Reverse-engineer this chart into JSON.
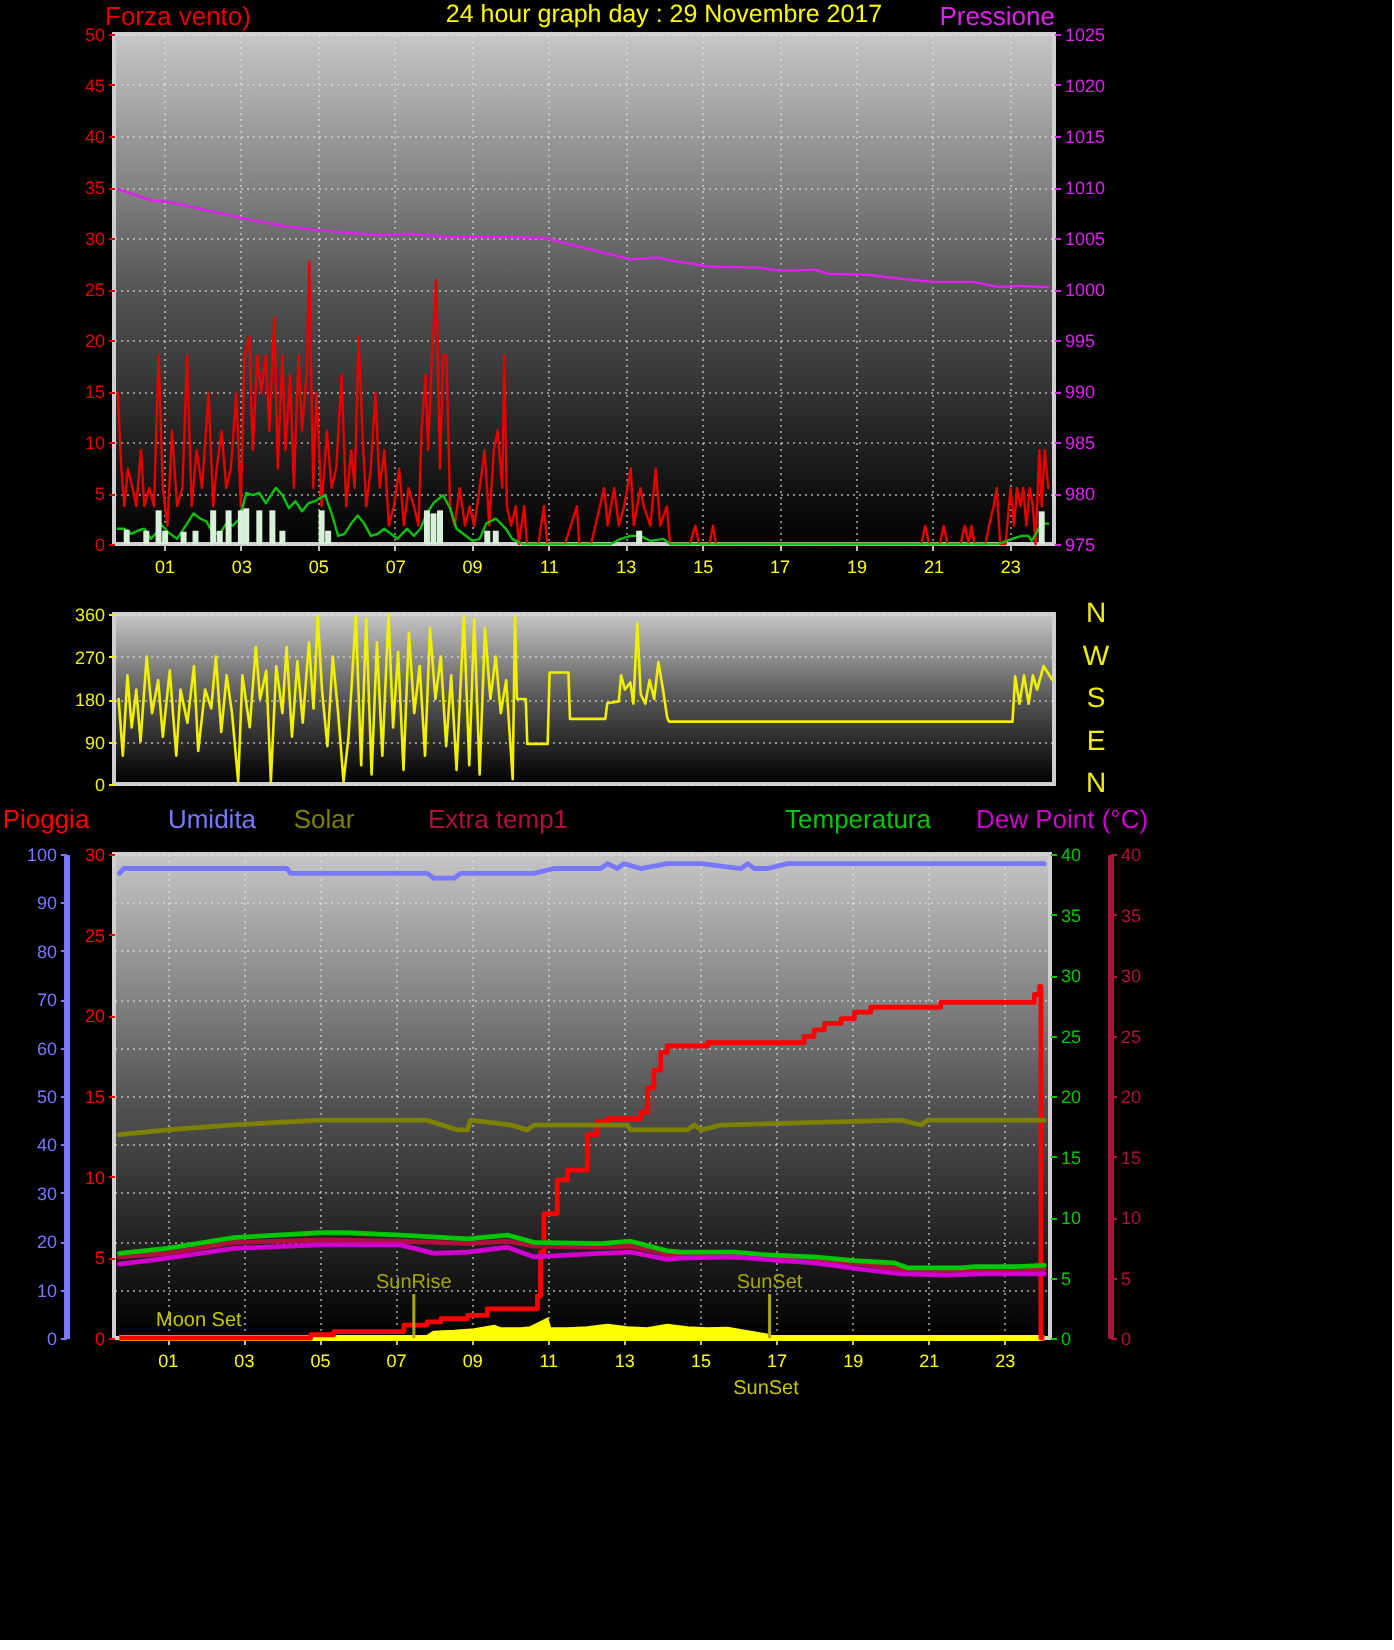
{
  "chart_data": [
    {
      "type": "line",
      "title": "24 hour graph day : 29 Novembre 2017",
      "ylabel": "Forza vento)",
      "y2label": "Pressione",
      "xlim": [
        -0.3,
        24.15
      ],
      "xticks": [
        {
          "value": 1,
          "label": "01"
        },
        {
          "value": 3,
          "label": "03"
        },
        {
          "value": 5,
          "label": "05"
        },
        {
          "value": 7,
          "label": "07"
        },
        {
          "value": 9,
          "label": "09"
        },
        11,
        13,
        15,
        17,
        19,
        21,
        23
      ],
      "ylim": [
        0,
        50
      ],
      "yticks": [
        0,
        5,
        10,
        15,
        20,
        25,
        30,
        35,
        40,
        45,
        50
      ],
      "y2lim": [
        975,
        1025
      ],
      "y2ticks": [
        975,
        980,
        985,
        990,
        995,
        1000,
        1005,
        1010,
        1015,
        1020,
        1025
      ],
      "grid": true,
      "series": [
        {
          "color": "#e80000",
          "x": [
            -0.2,
            -0.11,
            -0.03,
            0.06,
            0.18,
            0.28,
            0.4,
            0.49,
            0.62,
            0.74,
            0.86,
            0.97,
            1.09,
            1.21,
            1.34,
            1.48,
            1.6,
            1.72,
            1.85,
            1.99,
            2.16,
            2.28,
            2.37,
            2.5,
            2.62,
            2.74,
            2.88,
            3.0,
            3.09,
            3.22,
            3.31,
            3.43,
            3.53,
            3.65,
            3.74,
            3.87,
            3.96,
            4.08,
            4.16,
            4.28,
            4.38,
            4.5,
            4.59,
            4.71,
            4.78,
            4.88,
            4.97,
            5.1,
            5.24,
            5.36,
            5.48,
            5.62,
            5.74,
            5.87,
            5.96,
            6.06,
            6.16,
            6.26,
            6.38,
            6.5,
            6.61,
            6.73,
            6.85,
            6.98,
            7.12,
            7.24,
            7.36,
            7.5,
            7.62,
            7.7,
            7.8,
            7.87,
            7.97,
            8.08,
            8.18,
            8.26,
            8.35,
            8.44,
            8.56,
            8.69,
            8.83,
            8.95,
            9.07,
            9.21,
            9.34,
            9.46,
            9.58,
            9.68,
            9.8,
            9.85,
            9.92,
            10.03,
            10.15,
            10.23,
            10.37,
            10.44,
            10.74,
            10.88,
            10.97,
            11.43,
            11.74,
            11.8,
            12.11,
            12.45,
            12.54,
            12.71,
            12.83,
            12.97,
            13.14,
            13.22,
            13.39,
            13.48,
            13.65,
            13.79,
            13.91,
            14.08,
            14.16,
            14.68,
            14.82,
            14.92,
            15.19,
            15.28,
            15.36,
            20.7,
            20.8,
            20.9,
            21.18,
            21.28,
            21.38,
            21.72,
            21.83,
            21.93,
            22.0,
            22.08,
            22.37,
            22.46,
            22.58,
            22.66,
            22.75,
            22.89,
            23.02,
            23.11,
            23.19,
            23.28,
            23.35,
            23.43,
            23.52,
            23.6,
            23.67,
            23.77,
            23.83,
            23.91,
            24.0
          ],
          "values": [
            14.8,
            7.4,
            3.7,
            7.4,
            5.5,
            3.7,
            9.2,
            3.7,
            5.5,
            3.7,
            18.5,
            5.5,
            1.8,
            11.1,
            3.7,
            5.5,
            18.5,
            3.7,
            9.2,
            5.5,
            14.8,
            3.7,
            7.4,
            11.1,
            5.5,
            7.4,
            14.8,
            3.7,
            18.5,
            20.3,
            9.2,
            18.5,
            14.8,
            18.5,
            11.1,
            22.2,
            7.4,
            18.5,
            9.2,
            16.6,
            5.5,
            18.5,
            11.1,
            16.6,
            27.7,
            5.5,
            14.8,
            3.7,
            11.1,
            5.5,
            7.4,
            16.6,
            3.7,
            9.2,
            5.5,
            20.3,
            11.1,
            3.7,
            7.4,
            14.8,
            5.5,
            9.2,
            1.8,
            3.7,
            7.4,
            1.8,
            5.5,
            3.7,
            1.8,
            11.1,
            16.6,
            9.2,
            18.5,
            25.9,
            7.4,
            18.5,
            18.5,
            3.7,
            1.8,
            5.5,
            1.8,
            3.7,
            1.8,
            5.5,
            9.2,
            1.8,
            9.2,
            11.1,
            5.5,
            18.5,
            3.7,
            1.8,
            3.7,
            0,
            3.7,
            0,
            0,
            3.7,
            0,
            0,
            3.7,
            0,
            0,
            5.5,
            1.8,
            5.5,
            1.8,
            3.7,
            7.4,
            1.8,
            5.5,
            3.7,
            1.8,
            7.4,
            1.8,
            3.7,
            0,
            0,
            1.8,
            0,
            0,
            1.8,
            0,
            0,
            1.8,
            0,
            0,
            1.8,
            0,
            0,
            1.8,
            0,
            1.8,
            0,
            0,
            1.8,
            3.7,
            5.5,
            0,
            0,
            5.5,
            1.8,
            5.5,
            3.7,
            5.5,
            1.8,
            5.5,
            3.7,
            0,
            9.2,
            3.7,
            9.2,
            5.5
          ]
        },
        {
          "color": "#10c010",
          "x": [
            -0.2,
            -0.03,
            0.15,
            0.32,
            0.49,
            0.66,
            0.83,
            0.91,
            1.09,
            1.34,
            1.6,
            1.77,
            1.94,
            2.11,
            2.28,
            2.45,
            2.62,
            2.79,
            2.97,
            3.14,
            3.31,
            3.48,
            3.65,
            3.91,
            4.08,
            4.25,
            4.42,
            4.59,
            4.76,
            4.93,
            5.19,
            5.36,
            5.53,
            5.7,
            5.87,
            6.04,
            6.21,
            6.38,
            6.56,
            6.73,
            6.9,
            7.07,
            7.32,
            7.5,
            7.67,
            7.84,
            8.01,
            8.26,
            8.44,
            8.61,
            8.78,
            9.03,
            9.21,
            9.38,
            9.63,
            9.89,
            10.06,
            10.32,
            12.62,
            12.88,
            13.14,
            13.39,
            13.65,
            13.99,
            14.16,
            22.71,
            23.06,
            23.31,
            23.48,
            23.57,
            23.83,
            24.0
          ],
          "values": [
            1.5,
            1.5,
            1.0,
            1.3,
            1.5,
            0.5,
            1.2,
            2.0,
            1.2,
            0.5,
            2.0,
            3.0,
            2.5,
            2.2,
            1.0,
            1.0,
            2.0,
            1.8,
            2.5,
            5.0,
            4.8,
            5.0,
            4.0,
            5.5,
            4.8,
            3.5,
            4.2,
            3.2,
            4.0,
            4.2,
            4.8,
            3.0,
            0.8,
            1.0,
            2.0,
            2.8,
            2.0,
            0.8,
            1.0,
            1.5,
            1.0,
            0.5,
            1.5,
            0.8,
            1.5,
            3.0,
            4.0,
            4.8,
            3.5,
            1.5,
            1.0,
            0.3,
            0.5,
            2.0,
            2.5,
            1.5,
            0.5,
            0,
            0,
            0.5,
            0.8,
            0.8,
            0.3,
            0.5,
            0,
            0,
            0.5,
            0.8,
            0.8,
            0.3,
            2.0,
            2.0
          ]
        },
        {
          "type": "bar",
          "color": "#d8f0d8",
          "x": [
            0.03,
            0.54,
            0.86,
            1.03,
            1.51,
            1.82,
            2.28,
            2.45,
            2.68,
            3.0,
            3.14,
            3.48,
            3.82,
            4.08,
            5.1,
            5.27,
            7.84,
            8.01,
            8.18,
            9.41,
            9.63,
            13.36,
            23.83
          ],
          "values": [
            1.4,
            1.3,
            3.3,
            1.3,
            1.2,
            1.3,
            3.3,
            1.3,
            3.3,
            3.3,
            3.5,
            3.3,
            3.3,
            1.3,
            3.3,
            1.3,
            3.3,
            3.0,
            3.3,
            1.3,
            1.3,
            1.3,
            3.2
          ]
        },
        {
          "color": "#e020f0",
          "axis": "y2",
          "x": [
            -0.2,
            0.66,
            1.17,
            2.37,
            3.22,
            4.08,
            4.93,
            5.79,
            6.64,
            7.5,
            8.35,
            9.21,
            10.06,
            10.91,
            11.43,
            12.28,
            13.14,
            13.82,
            14.33,
            15.19,
            16.39,
            17.07,
            17.93,
            18.27,
            19.3,
            20.15,
            21.0,
            22.03,
            22.71,
            23.23,
            24.0
          ],
          "values": [
            1009.8,
            1008.7,
            1008.5,
            1007.5,
            1006.8,
            1006.2,
            1005.8,
            1005.5,
            1005.3,
            1005.4,
            1005.1,
            1005.1,
            1005.1,
            1005.0,
            1004.5,
            1003.7,
            1002.9,
            1003.1,
            1002.7,
            1002.2,
            1002.1,
            1001.8,
            1001.9,
            1001.5,
            1001.4,
            1001.0,
            1000.7,
            1000.7,
            1000.2,
            1000.3,
            1000.2
          ]
        }
      ]
    },
    {
      "type": "line",
      "xlim": [
        -0.3,
        24.15
      ],
      "ylim": [
        0,
        360
      ],
      "yticks": [
        0,
        90,
        180,
        270,
        360
      ],
      "grid": "y",
      "tick_labels": "y",
      "annotations": [
        "N",
        "W",
        "S",
        "E",
        "N"
      ],
      "series": [
        {
          "color": "#f0f000",
          "x": [
            -0.18,
            -0.07,
            0.05,
            0.16,
            0.28,
            0.39,
            0.55,
            0.69,
            0.85,
            0.97,
            1.15,
            1.32,
            1.43,
            1.61,
            1.78,
            1.89,
            2.07,
            2.23,
            2.35,
            2.49,
            2.63,
            2.77,
            2.93,
            3.04,
            3.23,
            3.39,
            3.5,
            3.66,
            3.78,
            3.92,
            4.08,
            4.19,
            4.33,
            4.47,
            4.61,
            4.77,
            4.89,
            5.0,
            5.11,
            5.25,
            5.39,
            5.53,
            5.67,
            5.8,
            5.99,
            6.13,
            6.26,
            6.4,
            6.54,
            6.68,
            6.84,
            6.96,
            7.09,
            7.23,
            7.37,
            7.51,
            7.65,
            7.79,
            7.92,
            8.06,
            8.2,
            8.34,
            8.47,
            8.61,
            8.8,
            8.94,
            9.07,
            9.21,
            9.35,
            9.49,
            9.63,
            9.76,
            9.9,
            10.07,
            10.13,
            10.18,
            10.41,
            10.45,
            10.98,
            11.03,
            11.52,
            11.56,
            12.48,
            12.53,
            12.83,
            12.89,
            12.99,
            13.13,
            13.21,
            13.31,
            13.4,
            13.52,
            13.63,
            13.75,
            13.86,
            13.98,
            14.09,
            14.14,
            23.07,
            23.14,
            23.25,
            23.37,
            23.49,
            23.6,
            23.71,
            23.88,
            24.11
          ],
          "values": [
            180,
            60,
            230,
            120,
            200,
            90,
            270,
            150,
            220,
            100,
            240,
            60,
            200,
            130,
            250,
            70,
            200,
            160,
            270,
            110,
            230,
            150,
            5,
            230,
            120,
            290,
            180,
            240,
            5,
            250,
            150,
            290,
            100,
            260,
            130,
            300,
            160,
            355,
            200,
            80,
            270,
            150,
            5,
            100,
            355,
            40,
            350,
            20,
            300,
            60,
            360,
            120,
            280,
            30,
            320,
            150,
            250,
            60,
            330,
            180,
            270,
            80,
            230,
            30,
            355,
            40,
            350,
            20,
            330,
            180,
            270,
            150,
            220,
            10,
            355,
            180,
            180,
            85,
            85,
            236,
            236,
            138,
            138,
            171,
            175,
            230,
            200,
            215,
            170,
            340,
            190,
            170,
            220,
            180,
            258,
            200,
            140,
            132,
            132,
            228,
            170,
            230,
            170,
            230,
            200,
            250,
            220
          ]
        }
      ]
    },
    {
      "type": "line",
      "legend": "top",
      "xlim": [
        -0.4,
        24.2
      ],
      "xticks": [
        {
          "value": 1,
          "label": "01"
        },
        {
          "value": 3,
          "label": "03"
        },
        {
          "value": 5,
          "label": "05"
        },
        {
          "value": 7,
          "label": "07"
        },
        {
          "value": 9,
          "label": "09"
        },
        11,
        13,
        15,
        17,
        19,
        21,
        23
      ],
      "ylim": [
        0,
        100
      ],
      "yticks": [
        0,
        10,
        20,
        30,
        40,
        50,
        60,
        70,
        80,
        90,
        100
      ],
      "y2lim": [
        0,
        30
      ],
      "y2ticks": [
        0,
        5,
        10,
        15,
        20,
        25,
        30
      ],
      "y3lim": [
        0,
        40
      ],
      "y3ticks": [
        0,
        5,
        10,
        15,
        20,
        25,
        30,
        35,
        40
      ],
      "grid": true,
      "ref_lines": [
        {
          "axis": "x",
          "value": 7.48,
          "label": "SunRise",
          "color": "#a8a800"
        },
        {
          "axis": "x",
          "value": 16.83,
          "label": "SunSet",
          "color": "#a8a800"
        }
      ],
      "annotations": [
        {
          "text": "Moon Set",
          "x": 1.83,
          "y": 0
        },
        "SunSet",
        "0",
        "5",
        "10",
        "15",
        "20",
        "25",
        "30",
        "35",
        "40"
      ],
      "series": [
        {
          "type": "area",
          "color": "#ffff00",
          "x": [
            -0.26,
            7.84,
            8.01,
            8.54,
            9.07,
            9.59,
            9.76,
            10.29,
            10.55,
            10.96,
            11.03,
            11.52,
            12.04,
            12.57,
            13.09,
            13.62,
            14.14,
            14.67,
            15.2,
            15.72,
            16.25,
            16.77,
            16.86,
            24.05
          ],
          "values": [
            0,
            0,
            0.9,
            1.1,
            1.4,
            2.1,
            1.6,
            1.6,
            1.8,
            3.4,
            1.6,
            1.6,
            1.8,
            2.3,
            1.8,
            1.6,
            2.3,
            1.8,
            1.6,
            1.7,
            1.0,
            0.3,
            0,
            0
          ]
        },
        {
          "type": "step",
          "name": "Pioggia",
          "color": "#ff0000",
          "axis": "y2",
          "x": [
            -0.26,
            4.77,
            5.38,
            7.22,
            7.83,
            8.19,
            8.89,
            9.41,
            10.73,
            10.81,
            10.9,
            11.25,
            11.52,
            12.04,
            12.3,
            12.57,
            13.44,
            13.62,
            13.79,
            13.97,
            14.14,
            15.2,
            17.74,
            18.0,
            18.27,
            18.71,
            19.06,
            19.49,
            21.33,
            23.79,
            23.93,
            23.96,
            24.05
          ],
          "values": [
            0,
            0.2,
            0.4,
            0.8,
            1.0,
            1.2,
            1.4,
            1.8,
            2.6,
            5.3,
            7.7,
            9.8,
            10.4,
            12.6,
            13.4,
            13.6,
            14.0,
            15.5,
            16.6,
            17.7,
            18.1,
            18.3,
            18.7,
            19.1,
            19.5,
            19.8,
            20.2,
            20.5,
            20.8,
            21.3,
            21.8,
            0,
            0
          ]
        },
        {
          "name": "Umidita",
          "color": "#7878ff",
          "x": [
            -0.26,
            -0.14,
            4.15,
            4.24,
            7.83,
            8.01,
            8.54,
            8.71,
            9.94,
            10.64,
            11.16,
            12.39,
            12.57,
            12.83,
            13.0,
            13.44,
            14.14,
            15.03,
            16.08,
            16.25,
            16.43,
            16.78,
            17.3,
            24.05
          ],
          "values": [
            96,
            97,
            97,
            96,
            96,
            95,
            95,
            96,
            96,
            96,
            97,
            97,
            98,
            97,
            98,
            97,
            98,
            98,
            97,
            98,
            97,
            97,
            98,
            98
          ]
        },
        {
          "name": "Solar",
          "color": "#808000",
          "x": [
            -0.26,
            1.0,
            2.66,
            5.03,
            7.83,
            8.62,
            8.89,
            8.97,
            10.03,
            10.46,
            10.64,
            13.09,
            13.18,
            14.67,
            14.85,
            15.03,
            15.55,
            20.28,
            20.81,
            20.98,
            24.05
          ],
          "values": [
            42,
            43,
            44,
            45,
            45,
            43,
            43,
            45,
            44,
            43,
            44,
            44,
            43,
            43,
            44,
            43,
            44,
            45,
            44,
            45,
            45
          ]
        },
        {
          "name": "Extra temp1",
          "color": "#b0103c",
          "axis": "y3",
          "x": [
            -0.26,
            1.0,
            2.75,
            5.03,
            7.13,
            8.89,
            9.94,
            10.64,
            12.39,
            13.18,
            14.14,
            14.5,
            16.6,
            18.0,
            19.06,
            20.46,
            22.21,
            24.05
          ],
          "values": [
            6.7,
            7.0,
            7.9,
            8.1,
            8.0,
            7.8,
            8.0,
            7.6,
            7.5,
            7.6,
            6.9,
            6.8,
            6.6,
            6.4,
            6.2,
            5.6,
            5.6,
            5.7
          ]
        },
        {
          "name": "Temperatura",
          "color": "#00c800",
          "axis": "y3",
          "x": [
            -0.26,
            1.0,
            2.75,
            5.03,
            5.73,
            7.13,
            8.89,
            9.94,
            10.64,
            12.39,
            13.18,
            14.14,
            14.5,
            15.9,
            16.6,
            18.0,
            19.06,
            20.11,
            20.46,
            21.86,
            22.21,
            23.26,
            24.05
          ],
          "values": [
            7.0,
            7.4,
            8.3,
            8.7,
            8.7,
            8.5,
            8.2,
            8.5,
            7.9,
            7.8,
            8.0,
            7.2,
            7.1,
            7.1,
            6.9,
            6.7,
            6.4,
            6.2,
            5.8,
            5.8,
            5.9,
            5.9,
            6.0
          ]
        },
        {
          "name": "Dew Point (°C)",
          "color": "#d000d0",
          "axis": "y3",
          "x": [
            -0.26,
            1.0,
            2.75,
            5.03,
            7.13,
            8.01,
            8.89,
            9.94,
            10.64,
            12.39,
            13.18,
            14.14,
            14.5,
            15.9,
            17.13,
            18.0,
            19.23,
            20.28,
            21.51,
            22.39,
            24.05
          ],
          "values": [
            6.1,
            6.6,
            7.4,
            7.7,
            7.7,
            7.0,
            7.1,
            7.5,
            6.7,
            7.0,
            7.1,
            6.5,
            6.6,
            6.7,
            6.4,
            6.2,
            5.7,
            5.3,
            5.2,
            5.3,
            5.3
          ]
        }
      ]
    }
  ]
}
